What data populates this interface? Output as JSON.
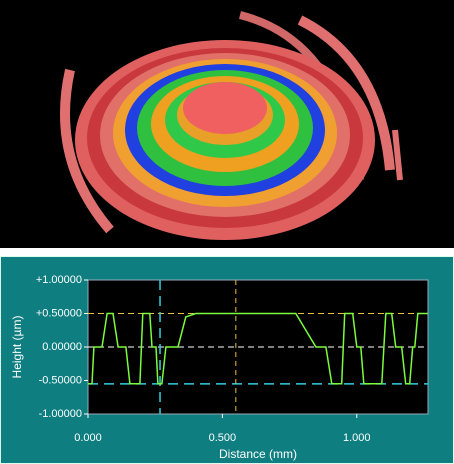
{
  "chart_data": {
    "type": "line",
    "y_label": "Height (µm)",
    "x_label": "Distance (mm)",
    "x": [
      0,
      0.015,
      0.022,
      0.052,
      0.071,
      0.093,
      0.112,
      0.141,
      0.156,
      0.193,
      0.204,
      0.23,
      0.238,
      0.253,
      0.26,
      0.275,
      0.29,
      0.335,
      0.364,
      0.401,
      0.773,
      0.848,
      0.885,
      0.907,
      0.944,
      0.955,
      0.985,
      1.0,
      1.015,
      1.026,
      1.093,
      1.108,
      1.13,
      1.145,
      1.167,
      1.182,
      1.197,
      1.208,
      1.216,
      1.227,
      1.264
    ],
    "values": [
      -0.55,
      -0.55,
      0,
      0,
      0.5,
      0.5,
      0,
      0,
      -0.55,
      -0.55,
      0.5,
      0.5,
      0,
      0,
      -0.55,
      -0.55,
      0,
      0,
      0.45,
      0.5,
      0.5,
      0,
      0,
      -0.55,
      -0.55,
      0.5,
      0.5,
      0,
      0,
      -0.55,
      -0.55,
      0.5,
      0.5,
      0,
      0,
      -0.55,
      -0.55,
      0,
      0,
      0.5,
      0.5
    ],
    "color": "#7cfc3c",
    "xlim": [
      0,
      1.265
    ],
    "ylim": [
      -1,
      1
    ],
    "xticks": [
      {
        "value": 0,
        "label": "0.000"
      },
      {
        "value": 0.5,
        "label": "0.500"
      },
      {
        "value": 1,
        "label": "1.000"
      }
    ],
    "yticks": [
      {
        "value": 1,
        "label": "+1.00000"
      },
      {
        "value": 0.5,
        "label": "+0.50000"
      },
      {
        "value": 0,
        "label": "0.00000"
      },
      {
        "value": -0.5,
        "label": "-0.50000"
      },
      {
        "value": -1,
        "label": "-1.00000"
      }
    ],
    "hlines": [
      {
        "value": 0.5,
        "color": "#e8c040"
      },
      {
        "value": 0,
        "color": "#ffffff"
      },
      {
        "value": -0.55,
        "color": "#30d0e0"
      }
    ],
    "vlines": [
      {
        "value": 0.268,
        "color": "#30d0e0"
      },
      {
        "value": 0.55,
        "color": "#e8c040"
      }
    ]
  }
}
